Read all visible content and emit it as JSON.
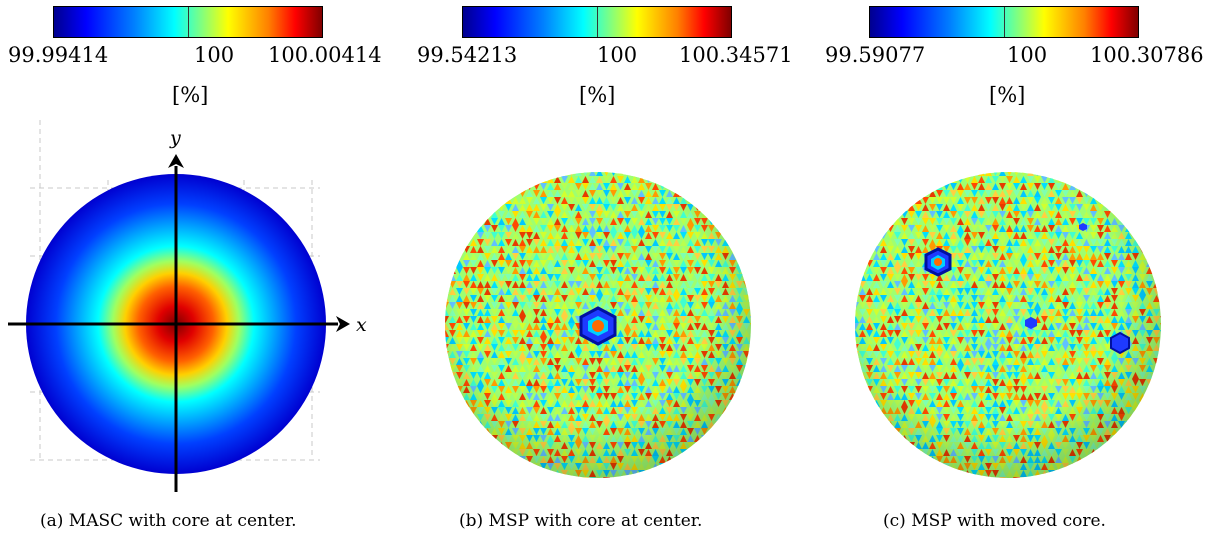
{
  "panels": [
    {
      "colorbar": {
        "min": "99.99414",
        "mid": "100",
        "max": "100.00414",
        "unit": "[%]"
      },
      "caption": "(a) MASC with core at center.",
      "axes": {
        "x": "x",
        "y": "y"
      }
    },
    {
      "colorbar": {
        "min": "99.54213",
        "mid": "100",
        "max": "100.34571",
        "unit": "[%]"
      },
      "caption": "(b) MSP with core at center."
    },
    {
      "colorbar": {
        "min": "99.59077",
        "mid": "100",
        "max": "100.30786",
        "unit": "[%]"
      },
      "caption": "(c) MSP with moved core."
    }
  ],
  "colors": {
    "colormap": "jet",
    "axis_line": "#000000",
    "grid_line": "#c8c8c8"
  }
}
